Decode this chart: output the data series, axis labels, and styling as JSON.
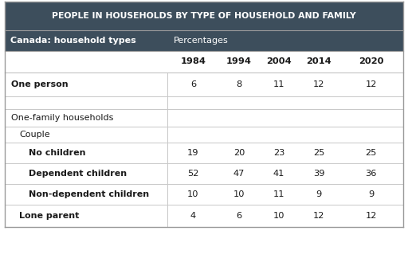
{
  "title": "PEOPLE IN HOUSEHOLDS BY TYPE OF HOUSEHOLD AND FAMILY",
  "header_bg": "#3d4e5c",
  "header_text_color": "#ffffff",
  "col1_label": "Canada: household types",
  "col2_label": "Percentages",
  "years": [
    "1984",
    "1994",
    "2004",
    "2014",
    "2020"
  ],
  "rows": [
    {
      "label": "One person",
      "bold": true,
      "indent": 0,
      "values": [
        "6",
        "8",
        "11",
        "12",
        "12"
      ]
    },
    {
      "label": "",
      "bold": false,
      "indent": 0,
      "values": [
        "",
        "",
        "",
        "",
        ""
      ]
    },
    {
      "label": "One-family households",
      "bold": false,
      "indent": 0,
      "values": [
        "",
        "",
        "",
        "",
        ""
      ]
    },
    {
      "label": "  Couple",
      "bold": false,
      "indent": 1,
      "values": [
        "",
        "",
        "",
        "",
        ""
      ]
    },
    {
      "label": "    No children",
      "bold": true,
      "indent": 2,
      "values": [
        "19",
        "20",
        "23",
        "25",
        "25"
      ]
    },
    {
      "label": "    Dependent children",
      "bold": true,
      "indent": 2,
      "values": [
        "52",
        "47",
        "41",
        "39",
        "36"
      ]
    },
    {
      "label": "    Non-dependent children",
      "bold": true,
      "indent": 2,
      "values": [
        "10",
        "10",
        "11",
        "9",
        "9"
      ]
    },
    {
      "label": "  Lone parent",
      "bold": true,
      "indent": 1,
      "values": [
        "4",
        "6",
        "10",
        "12",
        "12"
      ]
    }
  ],
  "table_bg": "#ffffff",
  "grid_color": "#c8c8c8",
  "text_color": "#1a1a1a",
  "title_fontsize": 7.8,
  "header_fontsize": 8.0,
  "year_fontsize": 8.2,
  "data_fontsize": 8.2,
  "label_fontsize": 8.0,
  "fig_width": 5.12,
  "fig_height": 3.39,
  "dpi": 100
}
